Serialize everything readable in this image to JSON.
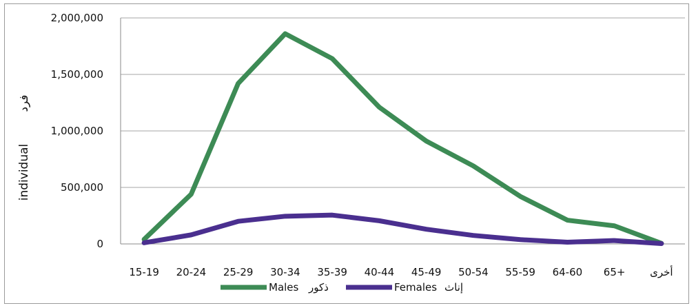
{
  "chart_data": {
    "type": "line",
    "ylabel_en": "individual",
    "ylabel_ar": "فرد",
    "ylim": [
      0,
      2000000
    ],
    "yticks": [
      "0",
      "500,000",
      "1,000,000",
      "1,500,000",
      "2,000,000"
    ],
    "ytick_values": [
      0,
      500000,
      1000000,
      1500000,
      2000000
    ],
    "categories": [
      "15-19",
      "20-24",
      "25-29",
      "30-34",
      "35-39",
      "40-44",
      "45-49",
      "50-54",
      "55-59",
      "64-60",
      "65+",
      "أخرى"
    ],
    "grid": true,
    "legend_position": "bottom",
    "series": [
      {
        "name": "Males",
        "name_ar": "ذكور",
        "color": "#3d8b55",
        "values": [
          40000,
          440000,
          1420000,
          1860000,
          1640000,
          1210000,
          910000,
          690000,
          420000,
          210000,
          160000,
          5000
        ]
      },
      {
        "name": "Females",
        "name_ar": "إناث",
        "color": "#4a2f8f",
        "values": [
          10000,
          80000,
          200000,
          245000,
          255000,
          205000,
          130000,
          75000,
          38000,
          15000,
          30000,
          3000
        ]
      }
    ]
  }
}
